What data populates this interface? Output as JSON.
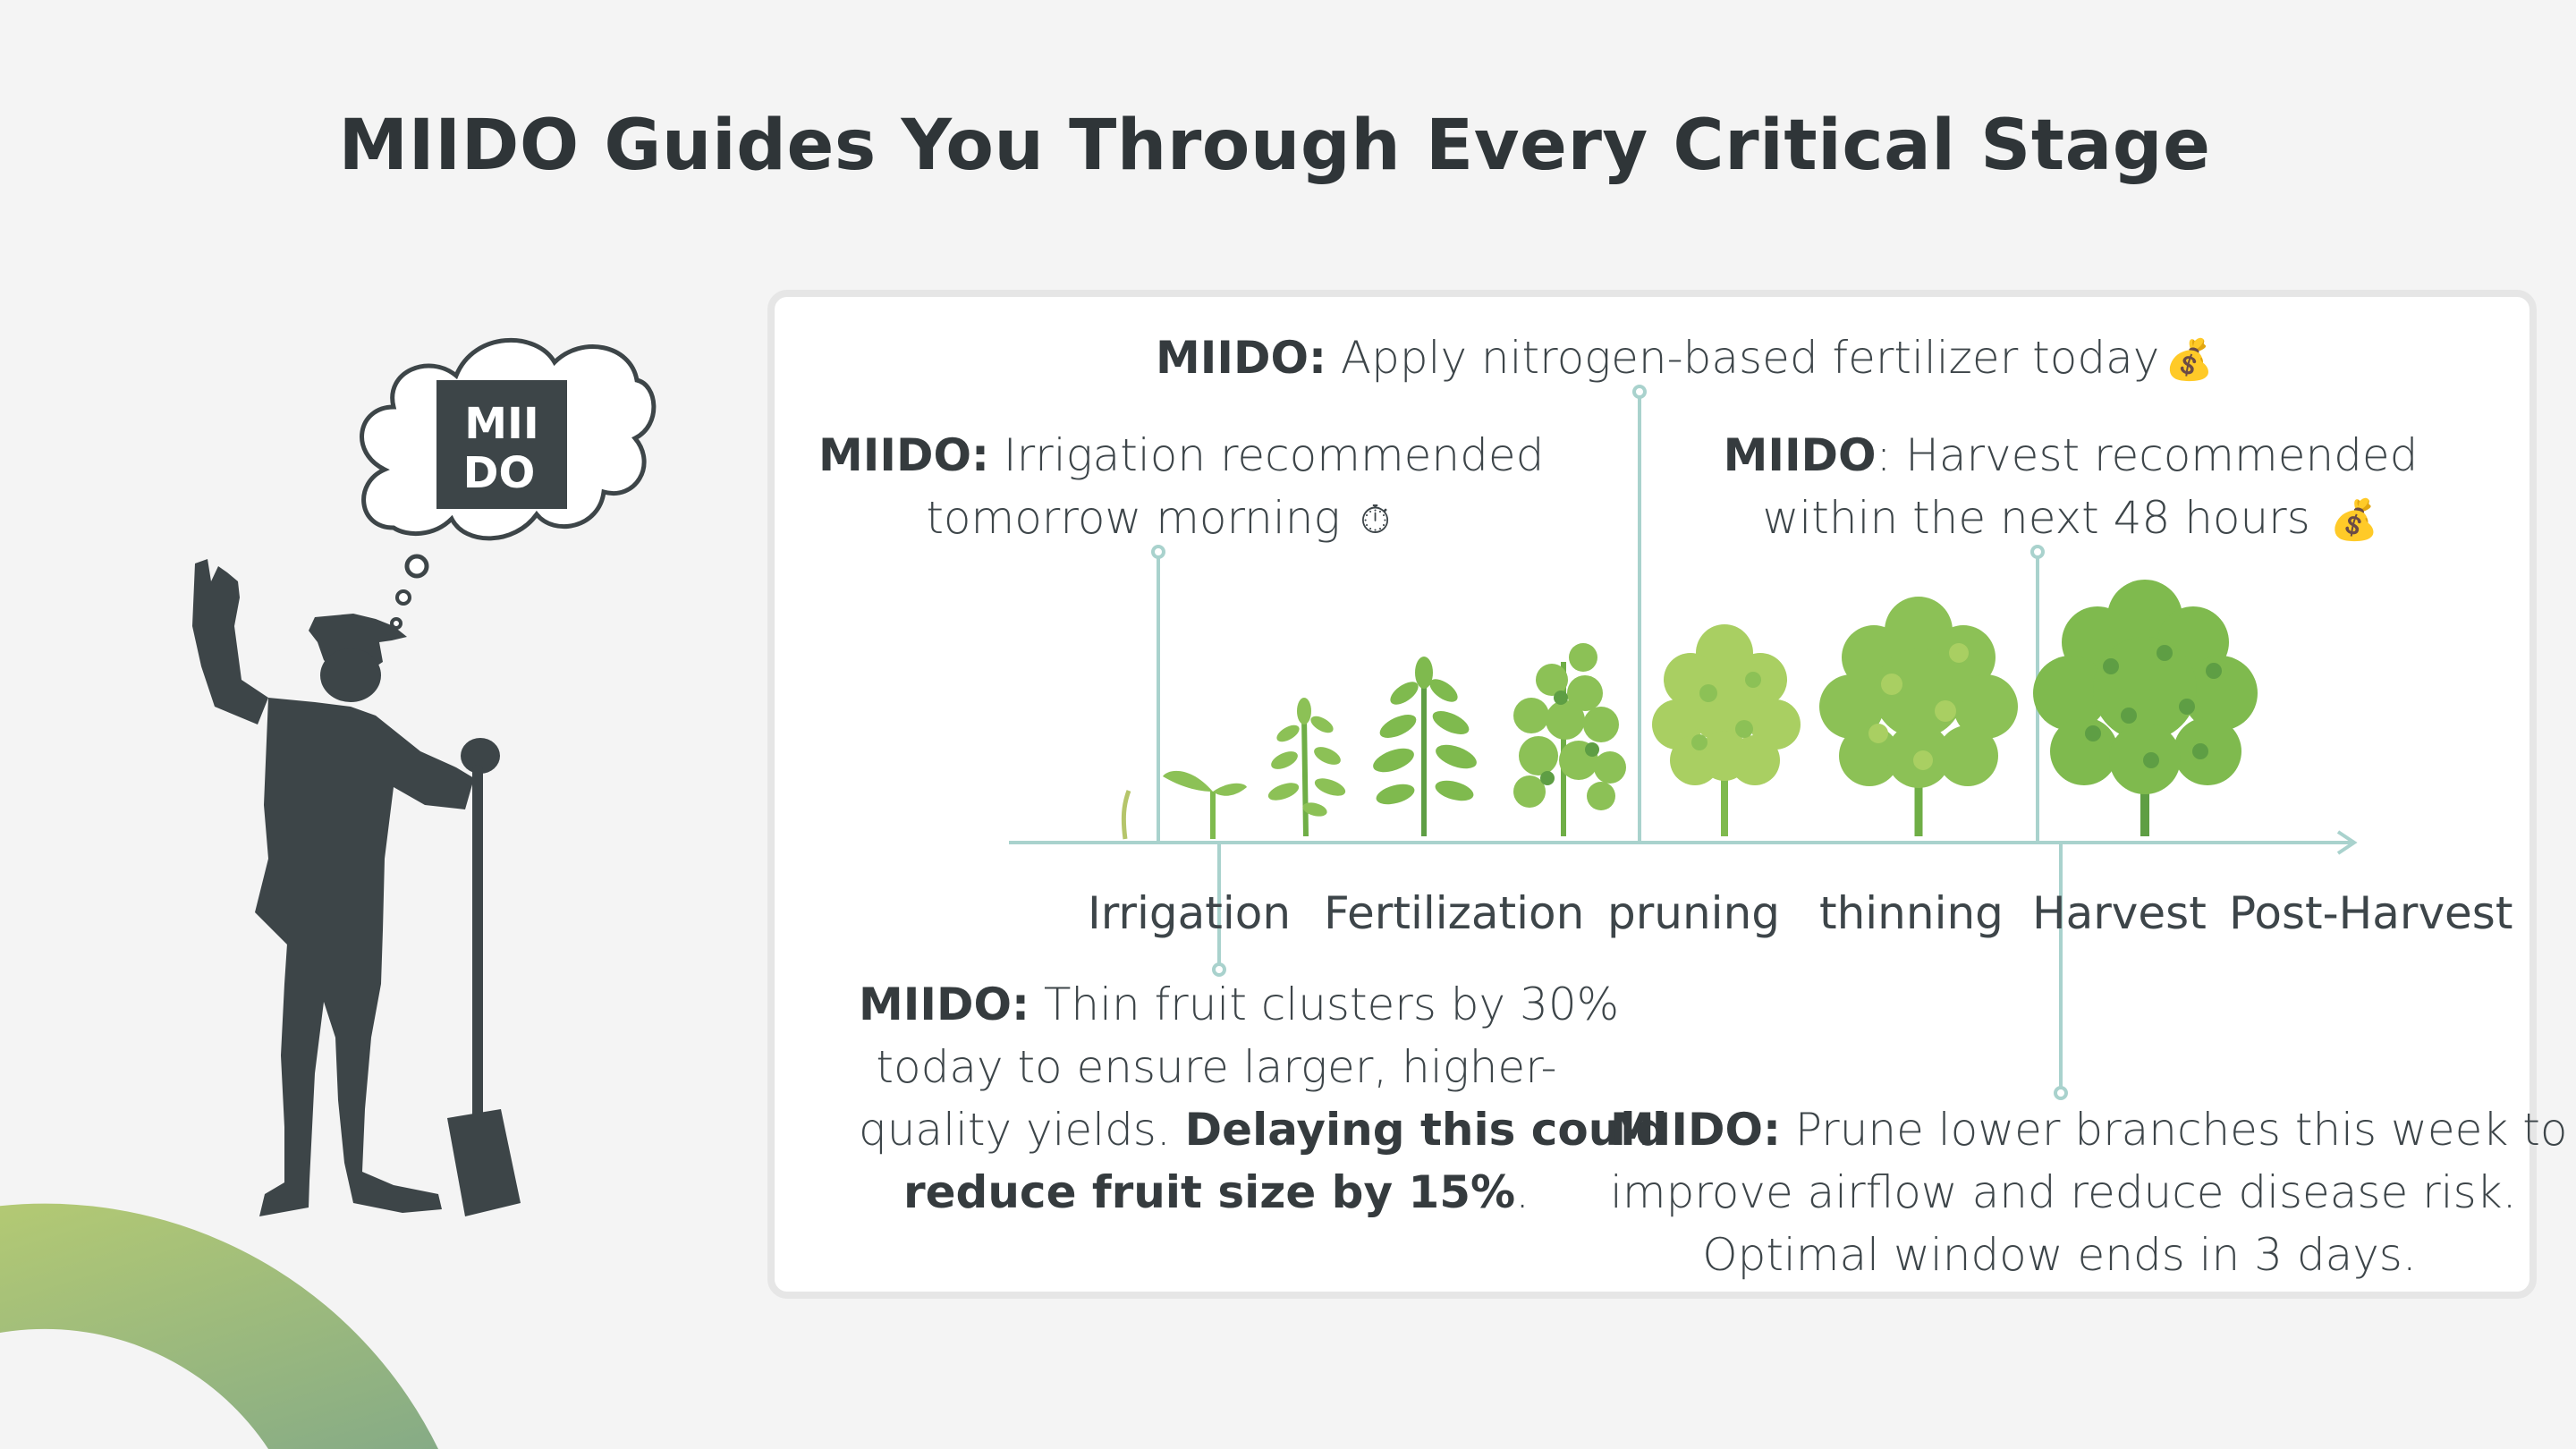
{
  "title": "MIIDO Guides You Through Every Critical Stage",
  "logo": {
    "line1": "MII",
    "line2": "DO"
  },
  "messages": {
    "fertilizer": {
      "brand": "MIIDO:",
      "text": "Apply nitrogen-based fertilizer today",
      "emoji": "💰"
    },
    "irrigation": {
      "brand": "MIIDO:",
      "text1": "Irrigation recommended",
      "text2": "tomorrow morning",
      "emoji": "⏱"
    },
    "harvest": {
      "brand": "MIIDO",
      "text1": ": Harvest recommended",
      "text2": "within the next 48 hours",
      "emoji": "💰"
    },
    "thinning": {
      "brand": "MIIDO:",
      "text1": "Thin fruit clusters by 30%",
      "text2": "today to ensure larger, higher-",
      "text3": "quality yields.",
      "bold1": "Delaying this could",
      "bold2": "reduce fruit size by 15%",
      "end": "."
    },
    "pruning": {
      "brand": "MIIDO:",
      "text1": "Prune lower branches this week to",
      "text2": "improve airflow and reduce disease risk.",
      "text3": "Optimal window ends in 3 days."
    }
  },
  "stages": [
    "Irrigation",
    "Fertilization",
    "pruning",
    "thinning",
    "Harvest",
    "Post-Harvest"
  ],
  "colors": {
    "title": "#2f3538",
    "silhouette": "#3d4548",
    "timeline": "#a9d2cd",
    "leaf_light": "#a9cf62",
    "leaf_mid": "#7fba4e",
    "leaf_dark": "#5e9e44",
    "arc_start": "#bcd172",
    "arc_end": "#8aae84"
  }
}
